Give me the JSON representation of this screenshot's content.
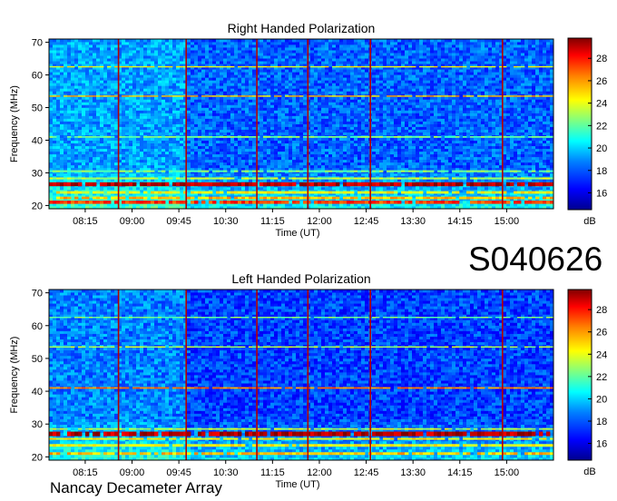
{
  "event_id": "S040626",
  "footer": "Nancay Decameter Array",
  "chart_data": [
    {
      "type": "heatmap",
      "title": "Right Handed Polarization",
      "xlabel": "Time (UT)",
      "ylabel": "Frequency (MHz)",
      "x_ticks": [
        "08:15",
        "09:00",
        "09:45",
        "10:30",
        "11:15",
        "12:00",
        "12:45",
        "13:30",
        "14:15",
        "15:00"
      ],
      "x_range_hours": [
        7.67,
        15.75
      ],
      "y_ticks": [
        20,
        30,
        40,
        50,
        60,
        70
      ],
      "ylim": [
        19,
        71
      ],
      "colorbar": {
        "label": "dB",
        "ticks": [
          16,
          18,
          20,
          22,
          24,
          26,
          28
        ],
        "range": [
          14.5,
          29.8
        ]
      },
      "colormap": [
        "#00008f",
        "#0000ff",
        "#0080ff",
        "#00ffff",
        "#80ff80",
        "#ffff00",
        "#ff8000",
        "#ff0000",
        "#800000"
      ],
      "background_level_db": {
        "before": {
          "start": 7.67,
          "end": 9.85,
          "level": 18.5
        },
        "after": {
          "start": 9.85,
          "end": 15.75,
          "level": 17.5
        }
      },
      "persistent_bands_mhz": [
        {
          "freq": 26.5,
          "level": 29,
          "width": 1.2
        },
        {
          "freq": 21.0,
          "level": 27,
          "width": 1.0
        },
        {
          "freq": 22.3,
          "level": 25,
          "width": 0.8
        },
        {
          "freq": 24.0,
          "level": 24,
          "width": 0.8
        },
        {
          "freq": 28.3,
          "level": 23,
          "width": 0.6
        },
        {
          "freq": 30.5,
          "level": 22,
          "width": 0.6
        },
        {
          "freq": 41.0,
          "level": 22,
          "width": 0.5
        },
        {
          "freq": 53.5,
          "level": 25,
          "width": 0.4
        },
        {
          "freq": 62.5,
          "level": 24,
          "width": 0.4
        }
      ],
      "interference_times_ut": [
        "08:47",
        "09:52",
        "11:00",
        "11:49",
        "12:49",
        "14:56"
      ]
    },
    {
      "type": "heatmap",
      "title": "Left Handed Polarization",
      "xlabel": "Time (UT)",
      "ylabel": "Frequency (MHz)",
      "x_ticks": [
        "08:15",
        "09:00",
        "09:45",
        "10:30",
        "11:15",
        "12:00",
        "12:45",
        "13:30",
        "14:15",
        "15:00"
      ],
      "x_range_hours": [
        7.67,
        15.75
      ],
      "y_ticks": [
        20,
        30,
        40,
        50,
        60,
        70
      ],
      "ylim": [
        19,
        71
      ],
      "colorbar": {
        "label": "dB",
        "ticks": [
          16,
          18,
          20,
          22,
          24,
          26,
          28
        ],
        "range": [
          14.5,
          29.8
        ]
      },
      "colormap": [
        "#00008f",
        "#0000ff",
        "#0080ff",
        "#00ffff",
        "#80ff80",
        "#ffff00",
        "#ff8000",
        "#ff0000",
        "#800000"
      ],
      "background_level_db": {
        "before": {
          "start": 7.67,
          "end": 9.85,
          "level": 18.0
        },
        "after": {
          "start": 9.85,
          "end": 15.75,
          "level": 17.0
        }
      },
      "persistent_bands_mhz": [
        {
          "freq": 27.0,
          "level": 29,
          "width": 1.4
        },
        {
          "freq": 21.0,
          "level": 25,
          "width": 0.8
        },
        {
          "freq": 23.5,
          "level": 24,
          "width": 0.8
        },
        {
          "freq": 25.5,
          "level": 24,
          "width": 0.6
        },
        {
          "freq": 28.5,
          "level": 23,
          "width": 0.5
        },
        {
          "freq": 41.0,
          "level": 26,
          "width": 0.5
        },
        {
          "freq": 53.5,
          "level": 23,
          "width": 0.4
        },
        {
          "freq": 62.5,
          "level": 22,
          "width": 0.4
        }
      ],
      "interference_times_ut": [
        "08:47",
        "09:52",
        "11:00",
        "11:49",
        "12:49",
        "14:56"
      ]
    }
  ]
}
